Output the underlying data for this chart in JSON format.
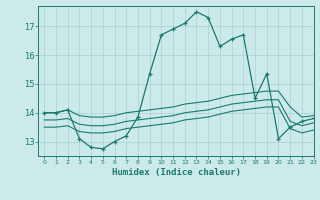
{
  "xlabel": "Humidex (Indice chaleur)",
  "ylabel": "",
  "xlim": [
    -0.5,
    23
  ],
  "ylim": [
    12.5,
    17.7
  ],
  "yticks": [
    13,
    14,
    15,
    16,
    17
  ],
  "xticks": [
    0,
    1,
    2,
    3,
    4,
    5,
    6,
    7,
    8,
    9,
    10,
    11,
    12,
    13,
    14,
    15,
    16,
    17,
    18,
    19,
    20,
    21,
    22,
    23
  ],
  "background_color": "#cceaea",
  "grid_color": "#aacfcf",
  "line_color": "#1a7a6e",
  "series": [
    {
      "x": [
        0,
        1,
        2,
        3,
        4,
        5,
        6,
        7,
        8,
        9,
        10,
        11,
        12,
        13,
        14,
        15,
        16,
        17,
        18,
        19,
        20,
        21,
        22,
        23
      ],
      "y": [
        14.0,
        14.0,
        14.1,
        13.1,
        12.8,
        12.75,
        13.0,
        13.2,
        13.85,
        15.35,
        16.7,
        16.9,
        17.1,
        17.5,
        17.3,
        16.3,
        16.55,
        16.7,
        14.5,
        15.35,
        13.1,
        13.5,
        13.7,
        13.8
      ],
      "marker": "+"
    },
    {
      "x": [
        0,
        1,
        2,
        3,
        4,
        5,
        6,
        7,
        8,
        9,
        10,
        11,
        12,
        13,
        14,
        15,
        16,
        17,
        18,
        19,
        20,
        21,
        22,
        23
      ],
      "y": [
        14.0,
        14.0,
        14.1,
        13.9,
        13.85,
        13.85,
        13.9,
        14.0,
        14.05,
        14.1,
        14.15,
        14.2,
        14.3,
        14.35,
        14.4,
        14.5,
        14.6,
        14.65,
        14.7,
        14.75,
        14.75,
        14.2,
        13.85,
        13.9
      ],
      "marker": null
    },
    {
      "x": [
        0,
        1,
        2,
        3,
        4,
        5,
        6,
        7,
        8,
        9,
        10,
        11,
        12,
        13,
        14,
        15,
        16,
        17,
        18,
        19,
        20,
        21,
        22,
        23
      ],
      "y": [
        13.75,
        13.75,
        13.8,
        13.6,
        13.55,
        13.55,
        13.6,
        13.7,
        13.75,
        13.8,
        13.85,
        13.9,
        14.0,
        14.05,
        14.1,
        14.2,
        14.3,
        14.35,
        14.4,
        14.45,
        14.45,
        13.7,
        13.55,
        13.65
      ],
      "marker": null
    },
    {
      "x": [
        0,
        1,
        2,
        3,
        4,
        5,
        6,
        7,
        8,
        9,
        10,
        11,
        12,
        13,
        14,
        15,
        16,
        17,
        18,
        19,
        20,
        21,
        22,
        23
      ],
      "y": [
        13.5,
        13.5,
        13.55,
        13.35,
        13.3,
        13.3,
        13.35,
        13.45,
        13.5,
        13.55,
        13.6,
        13.65,
        13.75,
        13.8,
        13.85,
        13.95,
        14.05,
        14.1,
        14.15,
        14.2,
        14.2,
        13.45,
        13.3,
        13.4
      ],
      "marker": null
    }
  ]
}
